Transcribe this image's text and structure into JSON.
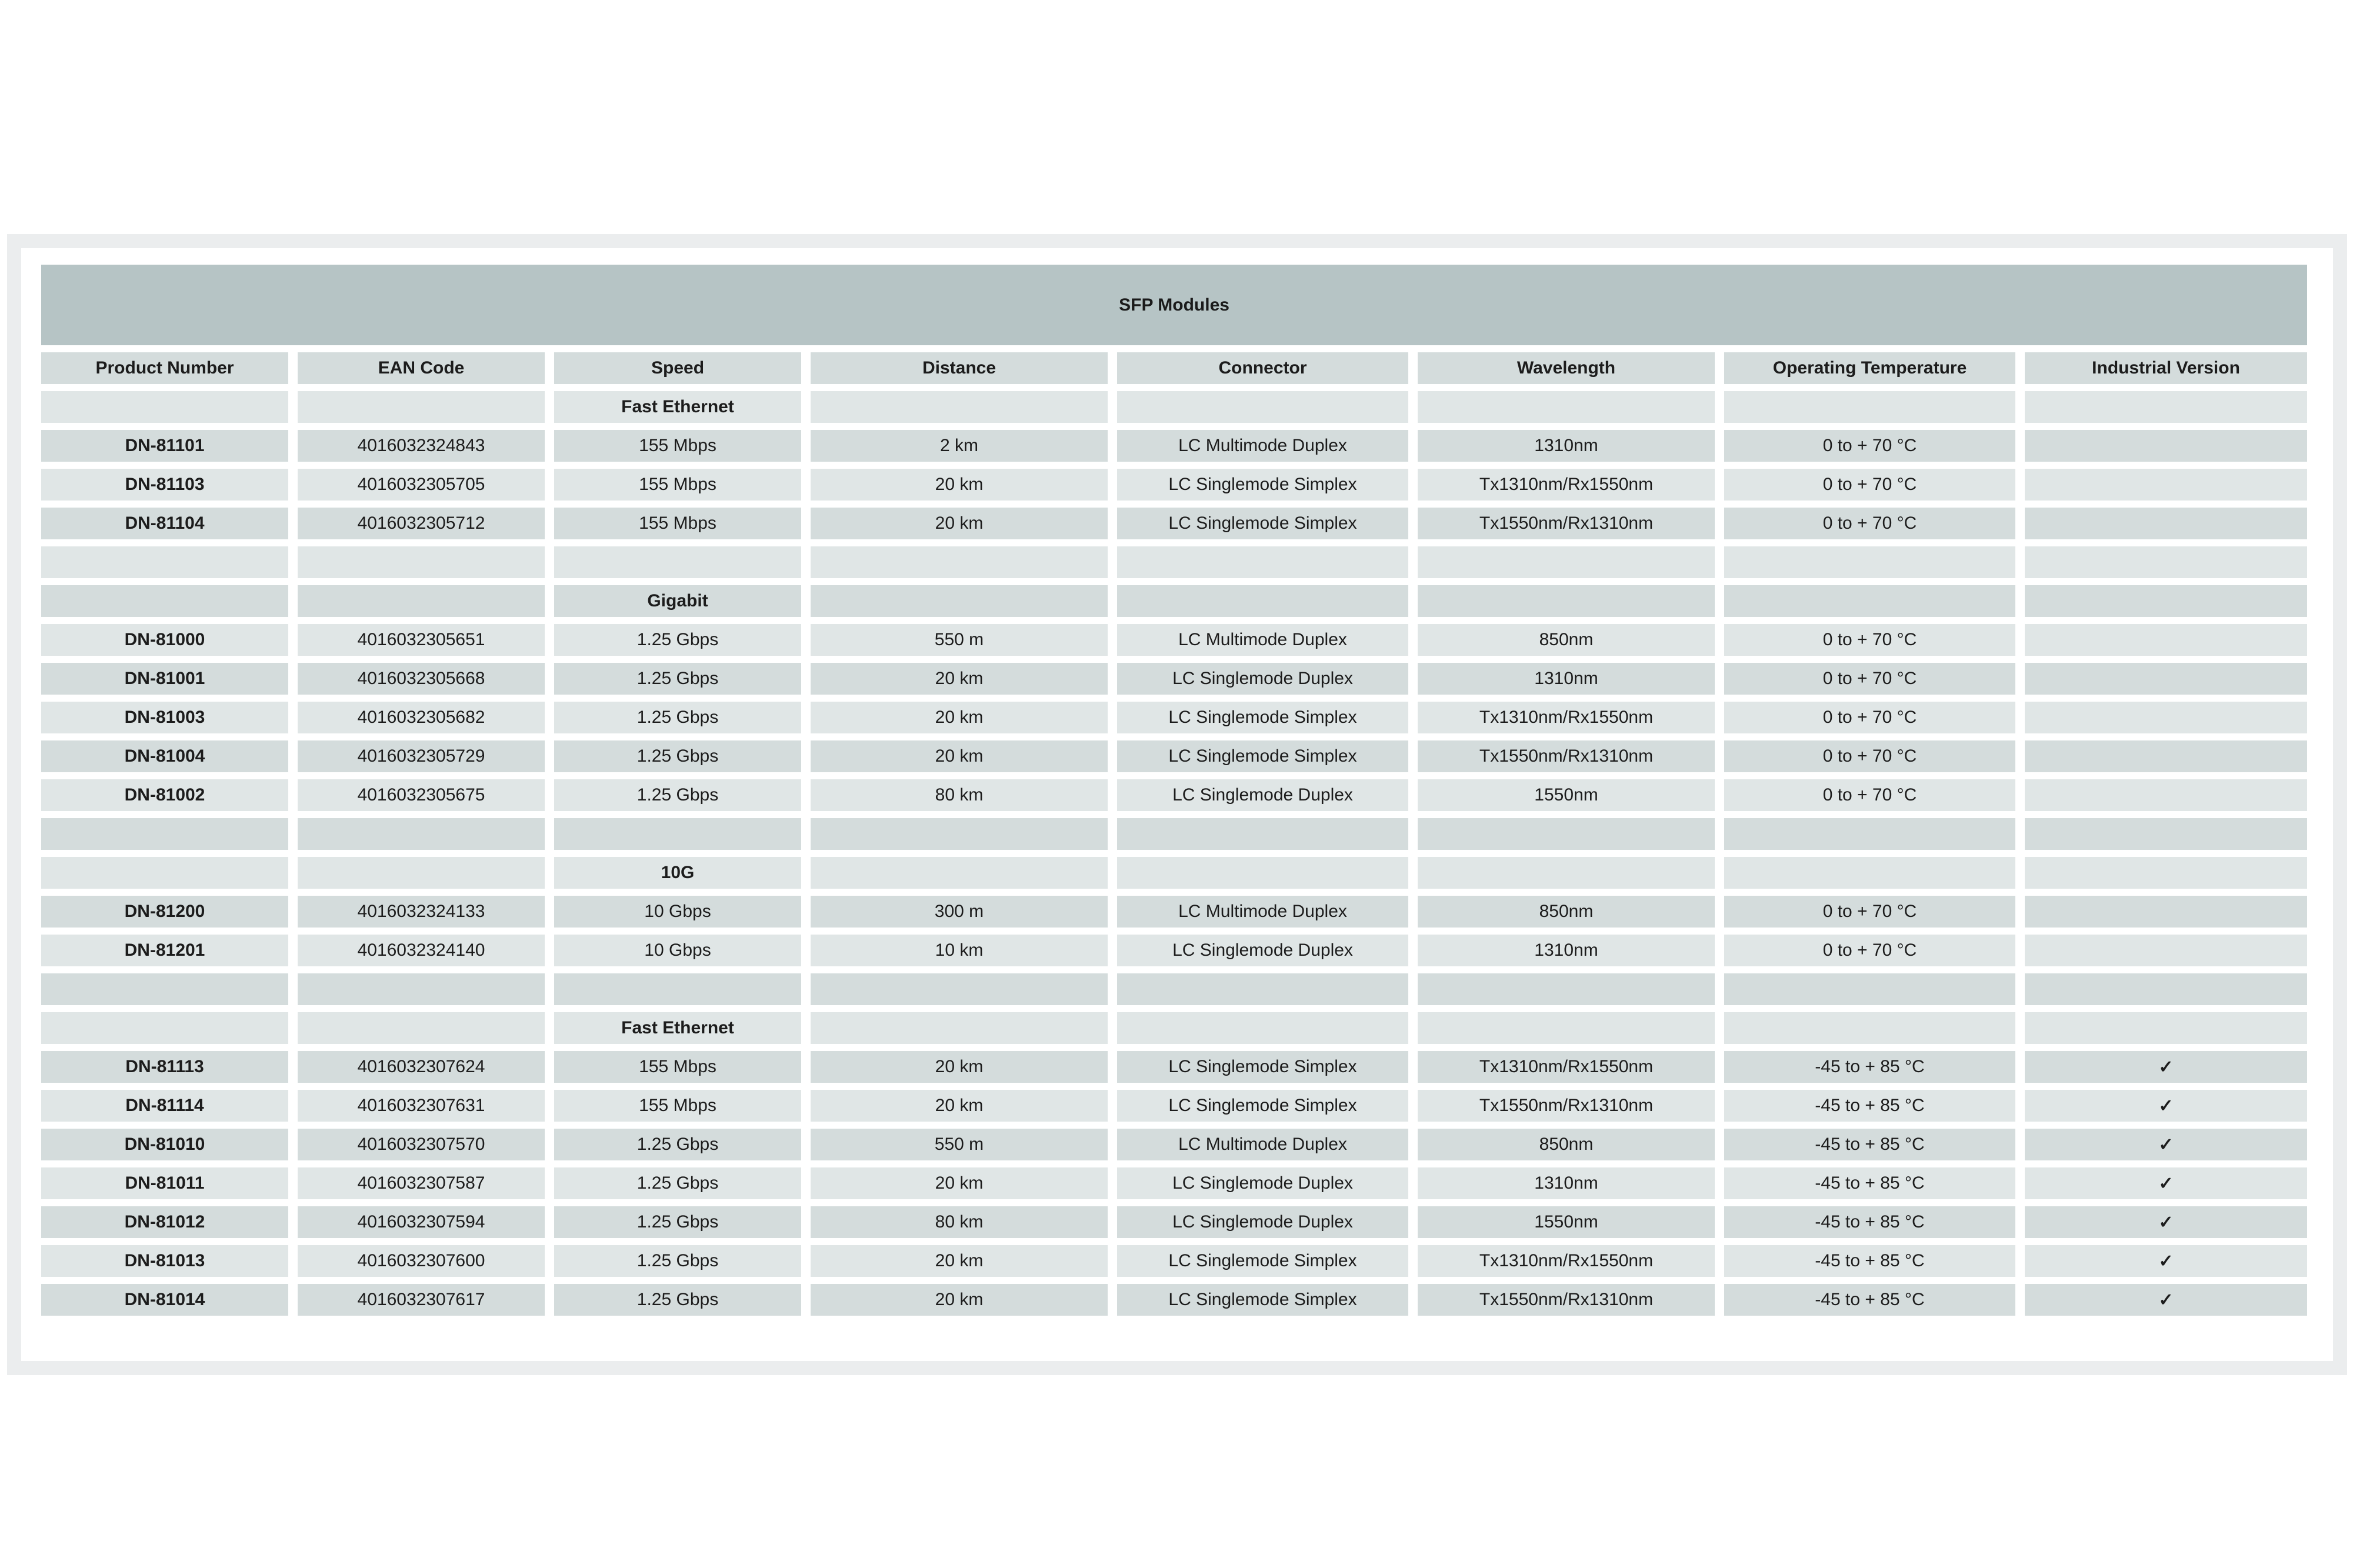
{
  "page": {
    "background_color": "#ffffff",
    "panel_color": "#ebedee",
    "inner_color": "#ffffff"
  },
  "table": {
    "title": "SFP Modules",
    "title_bg": "#b6c4c5",
    "row_dark_bg": "#d4dcdc",
    "row_light_bg": "#e0e6e6",
    "text_color": "#1c1c1c",
    "check_glyph": "✓",
    "columns": [
      "Product Number",
      "EAN Code",
      "Speed",
      "Distance",
      "Connector",
      "Wavelength",
      "Operating Temperature",
      "Industrial Version"
    ],
    "rows": [
      {
        "type": "section",
        "speed": "Fast Ethernet"
      },
      {
        "type": "data",
        "product": "DN-81101",
        "ean": "4016032324843",
        "speed": "155 Mbps",
        "distance": "2 km",
        "connector": "LC Multimode Duplex",
        "wavelength": "1310nm",
        "temperature": "0 to + 70 °C",
        "industrial": false
      },
      {
        "type": "data",
        "product": "DN-81103",
        "ean": "4016032305705",
        "speed": "155 Mbps",
        "distance": "20 km",
        "connector": "LC Singlemode Simplex",
        "wavelength": "Tx1310nm/Rx1550nm",
        "temperature": "0 to + 70 °C",
        "industrial": false
      },
      {
        "type": "data",
        "product": "DN-81104",
        "ean": "4016032305712",
        "speed": "155 Mbps",
        "distance": "20 km",
        "connector": "LC Singlemode Simplex",
        "wavelength": "Tx1550nm/Rx1310nm",
        "temperature": "0 to + 70 °C",
        "industrial": false
      },
      {
        "type": "spacer"
      },
      {
        "type": "section",
        "speed": "Gigabit"
      },
      {
        "type": "data",
        "product": "DN-81000",
        "ean": "4016032305651",
        "speed": "1.25 Gbps",
        "distance": "550 m",
        "connector": "LC Multimode Duplex",
        "wavelength": "850nm",
        "temperature": "0 to + 70 °C",
        "industrial": false
      },
      {
        "type": "data",
        "product": "DN-81001",
        "ean": "4016032305668",
        "speed": "1.25 Gbps",
        "distance": "20 km",
        "connector": "LC Singlemode Duplex",
        "wavelength": "1310nm",
        "temperature": "0 to + 70 °C",
        "industrial": false
      },
      {
        "type": "data",
        "product": "DN-81003",
        "ean": "4016032305682",
        "speed": "1.25 Gbps",
        "distance": "20 km",
        "connector": "LC Singlemode Simplex",
        "wavelength": "Tx1310nm/Rx1550nm",
        "temperature": "0 to + 70 °C",
        "industrial": false
      },
      {
        "type": "data",
        "product": "DN-81004",
        "ean": "4016032305729",
        "speed": "1.25 Gbps",
        "distance": "20 km",
        "connector": "LC Singlemode Simplex",
        "wavelength": "Tx1550nm/Rx1310nm",
        "temperature": "0 to + 70 °C",
        "industrial": false
      },
      {
        "type": "data",
        "product": "DN-81002",
        "ean": "4016032305675",
        "speed": "1.25 Gbps",
        "distance": "80 km",
        "connector": "LC Singlemode Duplex",
        "wavelength": "1550nm",
        "temperature": "0 to + 70 °C",
        "industrial": false
      },
      {
        "type": "spacer"
      },
      {
        "type": "section",
        "speed": "10G"
      },
      {
        "type": "data",
        "product": "DN-81200",
        "ean": "4016032324133",
        "speed": "10 Gbps",
        "distance": "300 m",
        "connector": "LC Multimode Duplex",
        "wavelength": "850nm",
        "temperature": "0 to + 70 °C",
        "industrial": false
      },
      {
        "type": "data",
        "product": "DN-81201",
        "ean": "4016032324140",
        "speed": "10 Gbps",
        "distance": "10 km",
        "connector": "LC Singlemode Duplex",
        "wavelength": "1310nm",
        "temperature": "0 to + 70 °C",
        "industrial": false
      },
      {
        "type": "spacer"
      },
      {
        "type": "section",
        "speed": "Fast Ethernet"
      },
      {
        "type": "data",
        "product": "DN-81113",
        "ean": "4016032307624",
        "speed": "155 Mbps",
        "distance": "20 km",
        "connector": "LC Singlemode Simplex",
        "wavelength": "Tx1310nm/Rx1550nm",
        "temperature": "-45 to + 85 °C",
        "industrial": true
      },
      {
        "type": "data",
        "product": "DN-81114",
        "ean": "4016032307631",
        "speed": "155 Mbps",
        "distance": "20 km",
        "connector": "LC Singlemode Simplex",
        "wavelength": "Tx1550nm/Rx1310nm",
        "temperature": "-45 to + 85 °C",
        "industrial": true
      },
      {
        "type": "data",
        "product": "DN-81010",
        "ean": "4016032307570",
        "speed": "1.25 Gbps",
        "distance": "550 m",
        "connector": "LC Multimode Duplex",
        "wavelength": "850nm",
        "temperature": "-45 to + 85 °C",
        "industrial": true
      },
      {
        "type": "data",
        "product": "DN-81011",
        "ean": "4016032307587",
        "speed": "1.25 Gbps",
        "distance": "20 km",
        "connector": "LC Singlemode Duplex",
        "wavelength": "1310nm",
        "temperature": "-45 to + 85 °C",
        "industrial": true
      },
      {
        "type": "data",
        "product": "DN-81012",
        "ean": "4016032307594",
        "speed": "1.25 Gbps",
        "distance": "80 km",
        "connector": "LC Singlemode Duplex",
        "wavelength": "1550nm",
        "temperature": "-45 to + 85 °C",
        "industrial": true
      },
      {
        "type": "data",
        "product": "DN-81013",
        "ean": "4016032307600",
        "speed": "1.25 Gbps",
        "distance": "20 km",
        "connector": "LC Singlemode Simplex",
        "wavelength": "Tx1310nm/Rx1550nm",
        "temperature": "-45 to + 85 °C",
        "industrial": true
      },
      {
        "type": "data",
        "product": "DN-81014",
        "ean": "4016032307617",
        "speed": "1.25 Gbps",
        "distance": "20 km",
        "connector": "LC Singlemode Simplex",
        "wavelength": "Tx1550nm/Rx1310nm",
        "temperature": "-45 to + 85 °C",
        "industrial": true
      }
    ]
  }
}
